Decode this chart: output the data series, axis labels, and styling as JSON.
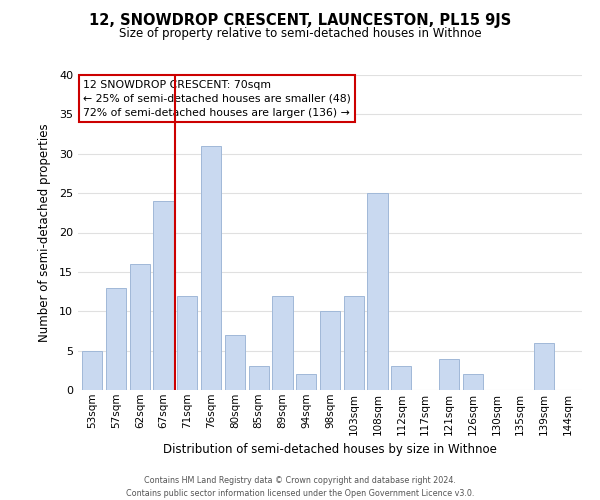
{
  "title": "12, SNOWDROP CRESCENT, LAUNCESTON, PL15 9JS",
  "subtitle": "Size of property relative to semi-detached houses in Withnoe",
  "xlabel": "Distribution of semi-detached houses by size in Withnoe",
  "ylabel": "Number of semi-detached properties",
  "footer_line1": "Contains HM Land Registry data © Crown copyright and database right 2024.",
  "footer_line2": "Contains public sector information licensed under the Open Government Licence v3.0.",
  "annotation_title": "12 SNOWDROP CRESCENT: 70sqm",
  "annotation_line1": "← 25% of semi-detached houses are smaller (48)",
  "annotation_line2": "72% of semi-detached houses are larger (136) →",
  "bar_color": "#c9d9f0",
  "bar_edge_color": "#a0b8d8",
  "marker_line_color": "#cc0000",
  "categories": [
    "53sqm",
    "57sqm",
    "62sqm",
    "67sqm",
    "71sqm",
    "76sqm",
    "80sqm",
    "85sqm",
    "89sqm",
    "94sqm",
    "98sqm",
    "103sqm",
    "108sqm",
    "112sqm",
    "117sqm",
    "121sqm",
    "126sqm",
    "130sqm",
    "135sqm",
    "139sqm",
    "144sqm"
  ],
  "values": [
    5,
    13,
    16,
    24,
    12,
    31,
    7,
    3,
    12,
    2,
    10,
    12,
    25,
    3,
    0,
    4,
    2,
    0,
    0,
    6,
    0
  ],
  "ylim": [
    0,
    40
  ],
  "yticks": [
    0,
    5,
    10,
    15,
    20,
    25,
    30,
    35,
    40
  ],
  "grid_color": "#e0e0e0",
  "background_color": "#ffffff"
}
